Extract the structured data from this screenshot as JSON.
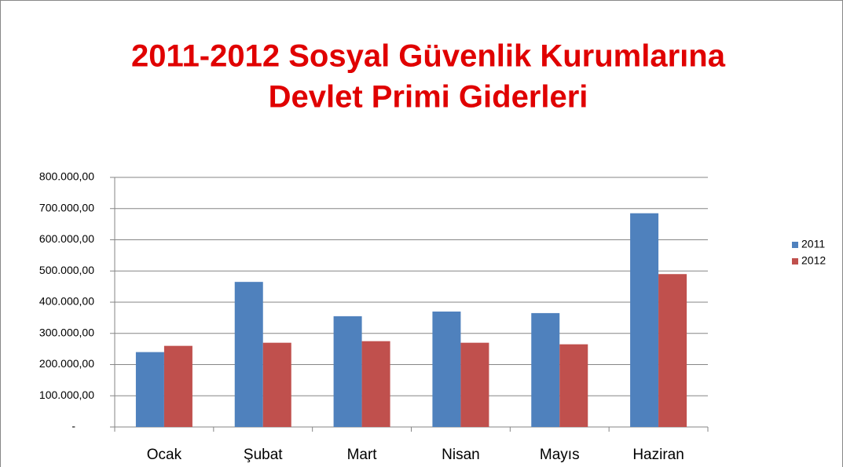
{
  "chart_data": {
    "type": "bar",
    "title": [
      "2011-2012 Sosyal Güvenlik Kurumlarına",
      "Devlet Primi Giderleri"
    ],
    "categories": [
      "Ocak",
      "Şubat",
      "Mart",
      "Nisan",
      "Mayıs",
      "Haziran"
    ],
    "series": [
      {
        "name": "2011",
        "color": "#4f81bd",
        "values": [
          240000,
          465000,
          355000,
          370000,
          365000,
          685000
        ]
      },
      {
        "name": "2012",
        "color": "#c0504d",
        "values": [
          260000,
          270000,
          275000,
          270000,
          265000,
          490000
        ]
      }
    ],
    "ylim": [
      0,
      800000
    ],
    "yticks": [
      {
        "value": 0,
        "label": "-"
      },
      {
        "value": 100000,
        "label": "100.000,00"
      },
      {
        "value": 200000,
        "label": "200.000,00"
      },
      {
        "value": 300000,
        "label": "300.000,00"
      },
      {
        "value": 400000,
        "label": "400.000,00"
      },
      {
        "value": 500000,
        "label": "500.000,00"
      },
      {
        "value": 600000,
        "label": "600.000,00"
      },
      {
        "value": 700000,
        "label": "700.000,00"
      },
      {
        "value": 800000,
        "label": "800.000,00"
      }
    ],
    "grid": true,
    "legend": "right"
  }
}
